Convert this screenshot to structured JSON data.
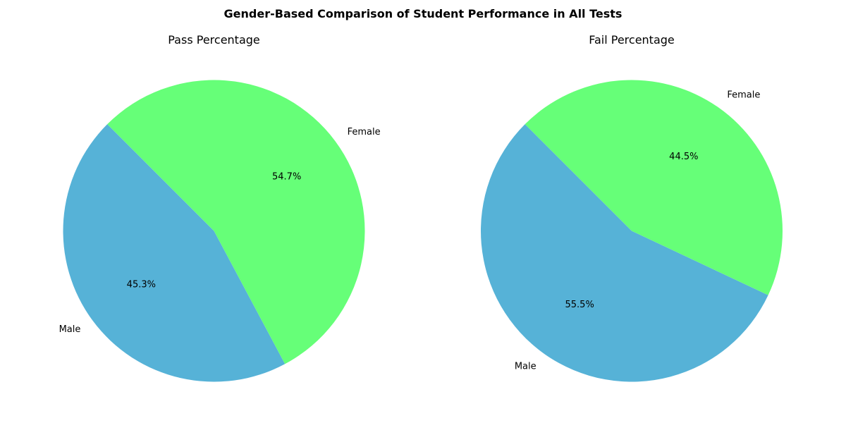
{
  "figure": {
    "title": "Gender-Based Comparison of Student Performance in All Tests"
  },
  "chart_data": [
    {
      "type": "pie",
      "title": "Pass Percentage",
      "labels": [
        "Male",
        "Female"
      ],
      "values": [
        45.3,
        54.7
      ],
      "percent_labels": [
        "45.3%",
        "54.7%"
      ],
      "colors": [
        "#56b2d7",
        "#66ff78"
      ],
      "start_angle_deg": 135,
      "direction": "counterclockwise"
    },
    {
      "type": "pie",
      "title": "Fail Percentage",
      "labels": [
        "Male",
        "Female"
      ],
      "values": [
        55.5,
        44.5
      ],
      "percent_labels": [
        "55.5%",
        "44.5%"
      ],
      "colors": [
        "#56b2d7",
        "#66ff78"
      ],
      "start_angle_deg": 135,
      "direction": "counterclockwise"
    }
  ]
}
